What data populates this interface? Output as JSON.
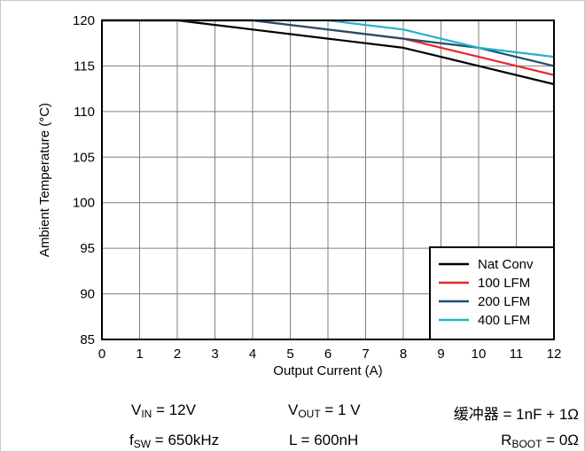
{
  "chart_data": {
    "type": "line",
    "xlabel": "Output Current (A)",
    "ylabel": "Ambient Temperature (°C)",
    "xlim": [
      0,
      12
    ],
    "ylim": [
      85,
      120
    ],
    "x_ticks": [
      "0",
      "1",
      "2",
      "3",
      "4",
      "5",
      "6",
      "7",
      "8",
      "9",
      "10",
      "11",
      "12"
    ],
    "y_ticks": [
      "85",
      "90",
      "95",
      "100",
      "105",
      "110",
      "115",
      "120"
    ],
    "grid": true,
    "legend_position": "bottom-right",
    "series": [
      {
        "name": "Nat Conv",
        "color": "#000000",
        "points": [
          [
            0,
            120
          ],
          [
            2,
            120
          ],
          [
            4,
            119
          ],
          [
            6,
            118
          ],
          [
            8,
            117
          ],
          [
            10,
            115
          ],
          [
            12,
            113
          ]
        ]
      },
      {
        "name": "100 LFM",
        "color": "#e8262a",
        "points": [
          [
            0,
            120
          ],
          [
            4,
            120
          ],
          [
            6,
            119
          ],
          [
            8,
            118
          ],
          [
            10,
            116
          ],
          [
            12,
            114
          ]
        ]
      },
      {
        "name": "200 LFM",
        "color": "#1f4e6e",
        "points": [
          [
            0,
            120
          ],
          [
            4,
            120
          ],
          [
            6,
            119
          ],
          [
            8,
            118
          ],
          [
            10,
            117
          ],
          [
            12,
            115
          ]
        ]
      },
      {
        "name": "400 LFM",
        "color": "#22b3c9",
        "points": [
          [
            0,
            120
          ],
          [
            6,
            120
          ],
          [
            8,
            119
          ],
          [
            10,
            117
          ],
          [
            12,
            116
          ]
        ]
      }
    ]
  },
  "conditions": {
    "vin": {
      "symbol": "V",
      "sub": "IN",
      "value": " = 12V"
    },
    "vout": {
      "symbol": "V",
      "sub": "OUT",
      "value": " = 1 V"
    },
    "snubber": {
      "label": "缓冲器 = 1nF + 1Ω"
    },
    "fsw": {
      "symbol": "f",
      "sub": "SW",
      "value": " = 650kHz"
    },
    "inductor": {
      "label": "L = 600nH"
    },
    "rboot": {
      "symbol": "R",
      "sub": "BOOT",
      "value": " = 0Ω"
    }
  }
}
